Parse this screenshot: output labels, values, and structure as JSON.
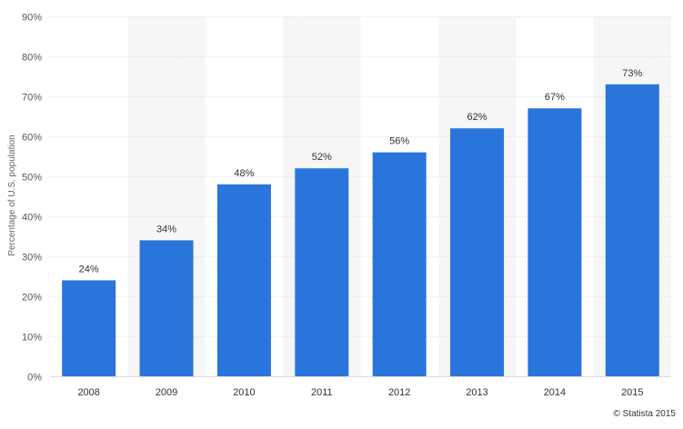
{
  "chart_data": {
    "type": "bar",
    "categories": [
      "2008",
      "2009",
      "2010",
      "2011",
      "2012",
      "2013",
      "2014",
      "2015"
    ],
    "values": [
      24,
      34,
      48,
      52,
      56,
      62,
      67,
      73
    ],
    "data_labels": [
      "24%",
      "34%",
      "48%",
      "52%",
      "56%",
      "62%",
      "67%",
      "73%"
    ],
    "title": "",
    "xlabel": "",
    "ylabel": "Percentage of U.S. population",
    "ylim": [
      0,
      90
    ],
    "yticks": [
      0,
      10,
      20,
      30,
      40,
      50,
      60,
      70,
      80,
      90
    ],
    "ytick_labels": [
      "0%",
      "10%",
      "20%",
      "30%",
      "40%",
      "50%",
      "60%",
      "70%",
      "80%",
      "90%"
    ],
    "grid": true,
    "bar_color": "#2a75dc",
    "alt_band_color": "#f6f6f6",
    "gridline_color": "#dddddd",
    "legend": "none"
  },
  "footer": {
    "credit": "© Statista 2015"
  }
}
